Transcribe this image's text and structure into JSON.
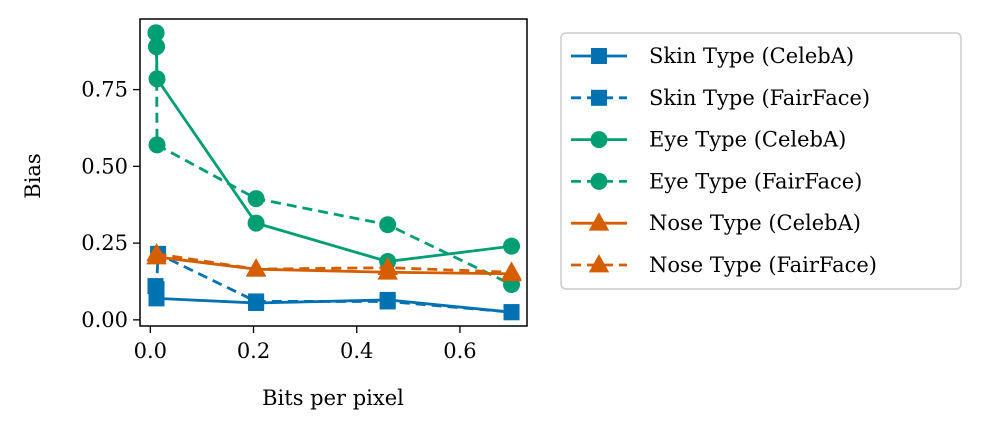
{
  "chart_data": {
    "type": "line",
    "title": "",
    "xlabel": "Bits per pixel",
    "ylabel": "Bias",
    "xlim": [
      -0.02,
      0.73
    ],
    "ylim": [
      -0.02,
      0.98
    ],
    "xticks": [
      0.0,
      0.2,
      0.4,
      0.6
    ],
    "xtick_labels": [
      "0.0",
      "0.2",
      "0.4",
      "0.6"
    ],
    "yticks": [
      0.0,
      0.25,
      0.5,
      0.75
    ],
    "ytick_labels": [
      "0.00",
      "0.25",
      "0.50",
      "0.75"
    ],
    "grid": false,
    "legend_position": "outside-right",
    "series": [
      {
        "name": "Skin Type (CelebA)",
        "color": "#0072b2",
        "marker": "square",
        "linestyle": "solid",
        "x": [
          0.01,
          0.012,
          0.205,
          0.46,
          0.7
        ],
        "y": [
          0.11,
          0.07,
          0.055,
          0.065,
          0.025
        ]
      },
      {
        "name": "Skin Type (FairFace)",
        "color": "#0072b2",
        "marker": "square",
        "linestyle": "dashed",
        "x": [
          0.012,
          0.015,
          0.205,
          0.46,
          0.7
        ],
        "y": [
          0.1,
          0.215,
          0.06,
          0.06,
          0.025
        ]
      },
      {
        "name": "Eye Type (CelebA)",
        "color": "#009e73",
        "marker": "circle",
        "linestyle": "solid",
        "x": [
          0.011,
          0.012,
          0.013,
          0.205,
          0.46,
          0.7
        ],
        "y": [
          0.935,
          0.89,
          0.785,
          0.315,
          0.19,
          0.24
        ]
      },
      {
        "name": "Eye Type (FairFace)",
        "color": "#009e73",
        "marker": "circle",
        "linestyle": "dashed",
        "x": [
          0.011,
          0.012,
          0.013,
          0.205,
          0.46,
          0.7
        ],
        "y": [
          0.935,
          0.89,
          0.57,
          0.395,
          0.31,
          0.115
        ]
      },
      {
        "name": "Nose Type (CelebA)",
        "color": "#d55e00",
        "marker": "triangle",
        "linestyle": "solid",
        "x": [
          0.012,
          0.205,
          0.46,
          0.7
        ],
        "y": [
          0.205,
          0.165,
          0.155,
          0.15
        ]
      },
      {
        "name": "Nose Type (FairFace)",
        "color": "#d55e00",
        "marker": "triangle",
        "linestyle": "dashed",
        "x": [
          0.012,
          0.205,
          0.46,
          0.7
        ],
        "y": [
          0.215,
          0.165,
          0.17,
          0.155
        ]
      }
    ]
  }
}
